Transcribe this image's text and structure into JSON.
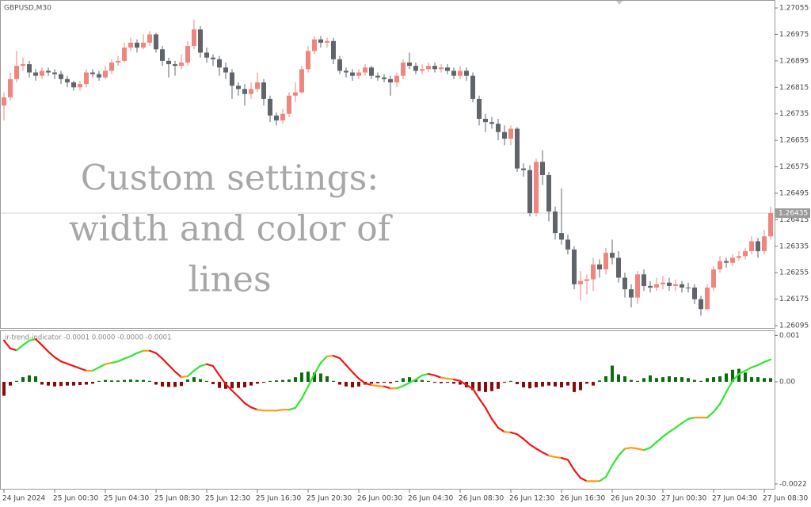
{
  "chart_data": [
    {
      "type": "candlestick",
      "title": "GBPUSD,M30",
      "annotation": [
        "Custom settings:",
        "width and color of",
        "lines"
      ],
      "categories": [
        "24 Jun 2024",
        null,
        null,
        null,
        null,
        null,
        null,
        null,
        "25 Jun 00:30",
        null,
        null,
        null,
        null,
        null,
        null,
        null,
        "25 Jun 04:30",
        null,
        null,
        null,
        null,
        null,
        null,
        null,
        "25 Jun 08:30",
        null,
        null,
        null,
        null,
        null,
        null,
        null,
        "25 Jun 12:30",
        null,
        null,
        null,
        null,
        null,
        null,
        null,
        "25 Jun 16:30",
        null,
        null,
        null,
        null,
        null,
        null,
        null,
        "25 Jun 20:30",
        null,
        null,
        null,
        null,
        null,
        null,
        null,
        "26 Jun 00:30",
        null,
        null,
        null,
        null,
        null,
        null,
        null,
        "26 Jun 04:30",
        null,
        null,
        null,
        null,
        null,
        null,
        null,
        "26 Jun 08:30",
        null,
        null,
        null,
        null,
        null,
        null,
        null,
        "26 Jun 12:30",
        null,
        null,
        null,
        null,
        null,
        null,
        null,
        "26 Jun 16:30",
        null,
        null,
        null,
        null,
        null,
        null,
        null,
        "26 Jun 20:30",
        null,
        null,
        null,
        null,
        null,
        null,
        null,
        "27 Jun 00:30",
        null,
        null,
        null,
        null,
        null,
        null,
        null,
        "27 Jun 04:30",
        null,
        null,
        null,
        null,
        null,
        null,
        null,
        "27 Jun 08:30",
        null
      ],
      "open": [
        1.2676,
        1.26785,
        1.2684,
        1.2688,
        1.26885,
        1.2686,
        1.2685,
        1.26865,
        1.2686,
        1.26855,
        1.2684,
        1.2683,
        1.26815,
        1.26825,
        1.2686,
        1.26855,
        1.26845,
        1.26865,
        1.2689,
        1.26895,
        1.26935,
        1.2695,
        1.26935,
        1.2695,
        1.26975,
        1.2693,
        1.26895,
        1.26885,
        1.2688,
        1.2689,
        1.2694,
        1.2699,
        1.2692,
        1.26905,
        1.269,
        1.26875,
        1.2686,
        1.2682,
        1.2681,
        1.26795,
        1.2681,
        1.2683,
        1.2678,
        1.2673,
        1.26715,
        1.26735,
        1.2679,
        1.268,
        1.2687,
        1.26925,
        1.2696,
        1.2695,
        1.26955,
        1.269,
        1.26865,
        1.2686,
        1.2685,
        1.2686,
        1.26875,
        1.2685,
        1.26845,
        1.2684,
        1.2683,
        1.2685,
        1.2689,
        1.2688,
        1.26865,
        1.2687,
        1.2688,
        1.2687,
        1.26875,
        1.26865,
        1.2685,
        1.26865,
        1.2685,
        1.2678,
        1.2672,
        1.2671,
        1.26705,
        1.2668,
        1.2666,
        1.2669,
        1.2657,
        1.26565,
        1.26435,
        1.2659,
        1.2655,
        1.2644,
        1.26375,
        1.26355,
        1.26325,
        1.2622,
        1.2623,
        1.26235,
        1.2628,
        1.26265,
        1.26315,
        1.263,
        1.2624,
        1.26205,
        1.2618,
        1.2625,
        1.26215,
        1.2621,
        1.2622,
        1.26225,
        1.26215,
        1.2622,
        1.2621,
        1.2621,
        1.26175,
        1.26145,
        1.2621,
        1.26265,
        1.2629,
        1.26285,
        1.263,
        1.26305,
        1.2632,
        1.2635,
        1.2632,
        1.26365
      ],
      "high": [
        1.268,
        1.2686,
        1.26925,
        1.26905,
        1.26895,
        1.2687,
        1.26875,
        1.26875,
        1.2687,
        1.26865,
        1.2685,
        1.26835,
        1.26835,
        1.2687,
        1.2687,
        1.26865,
        1.2688,
        1.269,
        1.2691,
        1.2695,
        1.26965,
        1.2696,
        1.26975,
        1.26985,
        1.2698,
        1.2694,
        1.26905,
        1.26895,
        1.26915,
        1.26955,
        1.2702,
        1.27,
        1.26935,
        1.26915,
        1.2691,
        1.2689,
        1.2687,
        1.2683,
        1.26825,
        1.2683,
        1.2686,
        1.2684,
        1.2679,
        1.2674,
        1.2675,
        1.268,
        1.2683,
        1.2688,
        1.2694,
        1.2697,
        1.2697,
        1.26965,
        1.26965,
        1.2691,
        1.26875,
        1.2687,
        1.2687,
        1.26885,
        1.2688,
        1.2686,
        1.26855,
        1.2685,
        1.2686,
        1.269,
        1.2692,
        1.2689,
        1.26885,
        1.2689,
        1.2689,
        1.26885,
        1.26885,
        1.26875,
        1.2688,
        1.26875,
        1.2686,
        1.2679,
        1.26735,
        1.26725,
        1.2672,
        1.267,
        1.267,
        1.26695,
        1.26585,
        1.2658,
        1.266,
        1.26625,
        1.2656,
        1.26455,
        1.2651,
        1.2637,
        1.26335,
        1.2626,
        1.2625,
        1.263,
        1.26295,
        1.2633,
        1.26355,
        1.2632,
        1.26255,
        1.2622,
        1.2626,
        1.26265,
        1.2623,
        1.2624,
        1.26245,
        1.2624,
        1.26235,
        1.2623,
        1.26225,
        1.2622,
        1.26185,
        1.2622,
        1.26275,
        1.26305,
        1.263,
        1.2631,
        1.2632,
        1.2633,
        1.26365,
        1.2636,
        1.26385,
        1.26455
      ],
      "low": [
        1.26715,
        1.26775,
        1.2683,
        1.26865,
        1.26845,
        1.26835,
        1.2684,
        1.2685,
        1.2684,
        1.26825,
        1.26815,
        1.26805,
        1.26805,
        1.26815,
        1.26845,
        1.26835,
        1.2684,
        1.26855,
        1.2688,
        1.2689,
        1.26925,
        1.2692,
        1.2693,
        1.2694,
        1.2692,
        1.2688,
        1.26845,
        1.2685,
        1.2687,
        1.2688,
        1.2693,
        1.26905,
        1.2689,
        1.2688,
        1.2685,
        1.2684,
        1.2678,
        1.2679,
        1.2676,
        1.2678,
        1.268,
        1.2676,
        1.2671,
        1.267,
        1.26705,
        1.26725,
        1.2677,
        1.26795,
        1.2686,
        1.26915,
        1.26935,
        1.26935,
        1.26885,
        1.26855,
        1.26845,
        1.26835,
        1.2684,
        1.2685,
        1.2684,
        1.26835,
        1.2683,
        1.2679,
        1.26815,
        1.2684,
        1.2687,
        1.26855,
        1.26855,
        1.2686,
        1.2686,
        1.2686,
        1.26855,
        1.2684,
        1.2684,
        1.26835,
        1.2677,
        1.267,
        1.2668,
        1.2669,
        1.26655,
        1.2664,
        1.2664,
        1.2656,
        1.26545,
        1.26425,
        1.26425,
        1.2652,
        1.2641,
        1.26355,
        1.2634,
        1.2631,
        1.26205,
        1.2617,
        1.2619,
        1.262,
        1.2624,
        1.2625,
        1.2628,
        1.26225,
        1.2618,
        1.2615,
        1.2616,
        1.262,
        1.26195,
        1.262,
        1.26205,
        1.262,
        1.262,
        1.26195,
        1.26195,
        1.2616,
        1.26125,
        1.2614,
        1.262,
        1.26255,
        1.2627,
        1.26275,
        1.2629,
        1.26295,
        1.2631,
        1.263,
        1.2631,
        1.26355
      ],
      "close": [
        1.26785,
        1.2684,
        1.2688,
        1.26885,
        1.2686,
        1.2685,
        1.26865,
        1.2686,
        1.26855,
        1.2684,
        1.2683,
        1.26815,
        1.26825,
        1.2686,
        1.26855,
        1.26845,
        1.26865,
        1.2689,
        1.26895,
        1.26935,
        1.2695,
        1.26935,
        1.2695,
        1.26975,
        1.2693,
        1.26895,
        1.26885,
        1.2688,
        1.2689,
        1.2694,
        1.2699,
        1.2692,
        1.26905,
        1.269,
        1.26875,
        1.2686,
        1.2682,
        1.2681,
        1.26795,
        1.2681,
        1.2683,
        1.2678,
        1.2673,
        1.26715,
        1.26735,
        1.2679,
        1.268,
        1.2687,
        1.26925,
        1.2696,
        1.2695,
        1.26955,
        1.269,
        1.26865,
        1.2686,
        1.2685,
        1.2686,
        1.26875,
        1.2685,
        1.26845,
        1.2684,
        1.2683,
        1.2685,
        1.2689,
        1.2688,
        1.26865,
        1.2687,
        1.2688,
        1.2687,
        1.26875,
        1.26865,
        1.2685,
        1.26865,
        1.2685,
        1.2678,
        1.2672,
        1.2671,
        1.26705,
        1.2668,
        1.2666,
        1.2669,
        1.2657,
        1.26565,
        1.26435,
        1.2659,
        1.2655,
        1.2644,
        1.26375,
        1.26355,
        1.26325,
        1.2622,
        1.2623,
        1.26235,
        1.2628,
        1.26265,
        1.26315,
        1.263,
        1.2624,
        1.26205,
        1.2618,
        1.2625,
        1.26215,
        1.2621,
        1.2622,
        1.26225,
        1.26215,
        1.2622,
        1.2621,
        1.2621,
        1.26175,
        1.26145,
        1.2621,
        1.26265,
        1.2629,
        1.26285,
        1.263,
        1.26305,
        1.2632,
        1.2635,
        1.2632,
        1.26365,
        1.26435
      ],
      "up_color": "#ef867d",
      "down_color": "#60656c",
      "last_price": 1.26435,
      "ylim": [
        1.26088,
        1.27079
      ],
      "yticks": [
        1.27055,
        1.26975,
        1.26895,
        1.26815,
        1.26735,
        1.26655,
        1.26575,
        1.26495,
        1.26415,
        1.26335,
        1.26255,
        1.26175,
        1.26095
      ]
    },
    {
      "type": "indicator",
      "label": "jr-trend-indicator -0.0001 0.0000 -0.0000 -0.0001",
      "line": {
        "values": [
          0.00089,
          0.00072,
          0.00068,
          0.00079,
          0.00089,
          0.00092,
          0.00079,
          0.00065,
          0.00053,
          0.00044,
          0.00039,
          0.00034,
          0.00029,
          0.00024,
          0.00024,
          0.00031,
          0.00038,
          0.00041,
          0.00044,
          0.0005,
          0.00055,
          0.00062,
          0.00067,
          0.00067,
          0.00062,
          0.0005,
          0.00036,
          0.00022,
          0.0001,
          0.00012,
          0.00024,
          0.00034,
          0.00038,
          0.00034,
          0.00014,
          -5e-05,
          -0.00019,
          -0.00032,
          -0.00046,
          -0.00055,
          -0.0006,
          -0.00062,
          -0.00062,
          -0.00062,
          -0.0006,
          -0.0006,
          -0.00056,
          -0.00036,
          -0.0001,
          0.00017,
          0.00041,
          0.00055,
          0.00056,
          0.00051,
          0.00036,
          0.00021,
          7e-05,
          -3e-05,
          -7e-05,
          -9e-05,
          -0.0001,
          -0.00014,
          -0.00014,
          -9e-05,
          -2e-05,
          5e-05,
          0.00014,
          0.00017,
          0.00014,
          9e-05,
          7e-05,
          5e-05,
          2e-05,
          -7e-05,
          -0.00015,
          -0.00036,
          -0.00056,
          -0.0008,
          -0.00099,
          -0.00108,
          -0.00109,
          -0.00113,
          -0.00123,
          -0.00135,
          -0.00144,
          -0.00152,
          -0.00159,
          -0.00162,
          -0.00164,
          -0.00168,
          -0.0019,
          -0.00207,
          -0.00214,
          -0.00214,
          -0.00214,
          -0.00205,
          -0.0018,
          -0.00159,
          -0.00144,
          -0.00142,
          -0.00144,
          -0.00147,
          -0.00142,
          -0.0013,
          -0.00118,
          -0.00108,
          -0.00099,
          -0.00089,
          -0.0008,
          -0.00077,
          -0.00077,
          -0.00077,
          -0.00065,
          -0.00048,
          -0.00022,
          2e-05,
          0.00017,
          0.00024,
          0.00031,
          0.00036,
          0.00043,
          0.00048
        ],
        "up_color": "#2ee82e",
        "down_color": "#ee1616",
        "flat_color": "#ff9a1a"
      },
      "histogram": {
        "values": [
          -0.0003,
          -8e-05,
          2e-05,
          0.0001,
          0.00014,
          0.00012,
          -6e-05,
          -8e-05,
          -0.0001,
          -9e-05,
          -8e-05,
          -8e-05,
          -7e-05,
          -6e-05,
          -4e-05,
          2e-05,
          4e-05,
          3e-05,
          3e-05,
          4e-05,
          5e-05,
          4e-05,
          4e-05,
          2e-05,
          -6e-05,
          -0.0001,
          -0.00011,
          -0.00011,
          -9e-05,
          5e-05,
          0.0001,
          6e-05,
          2e-05,
          -5e-05,
          -0.00013,
          -0.00015,
          -0.00014,
          -0.00013,
          -0.00012,
          -8e-05,
          -4e-05,
          -2e-05,
          2e-05,
          3e-05,
          4e-05,
          5e-05,
          0.0001,
          0.0002,
          0.00022,
          0.0002,
          0.00018,
          0.00012,
          2e-05,
          -6e-05,
          -0.0001,
          -0.00012,
          -0.0001,
          -6e-05,
          -4e-05,
          -3e-05,
          -2e-05,
          -3e-05,
          2e-05,
          8e-05,
          0.0001,
          6e-05,
          4e-05,
          2e-05,
          -2e-05,
          -3e-05,
          -2e-05,
          -4e-05,
          -6e-05,
          -0.00012,
          -0.00018,
          -0.0002,
          -0.00022,
          -0.0002,
          -0.00015,
          -2e-05,
          2e-05,
          -5e-05,
          -0.00012,
          -0.00014,
          -0.00012,
          -0.0001,
          -8e-05,
          -0.0001,
          -0.00012,
          -8e-05,
          -0.00022,
          -0.00018,
          -4e-05,
          -8e-05,
          3e-05,
          0.00012,
          0.00035,
          0.00016,
          0.00012,
          4e-05,
          2e-05,
          8e-05,
          0.00014,
          8e-05,
          0.0001,
          0.00012,
          0.0001,
          0.0001,
          8e-05,
          4e-05,
          2e-05,
          8e-05,
          0.0001,
          0.00012,
          0.00018,
          0.00026,
          0.00028,
          0.0002,
          0.0001,
          0.0001,
          8e-05,
          8e-05
        ],
        "positive_color": "#0b6e0b",
        "negative_color": "#8a0a0a"
      },
      "ylim": [
        -0.002304,
        0.001092
      ],
      "yticks": [
        0.001,
        {
          "value": 0,
          "label": "0.00"
        },
        -0.0022
      ]
    }
  ]
}
